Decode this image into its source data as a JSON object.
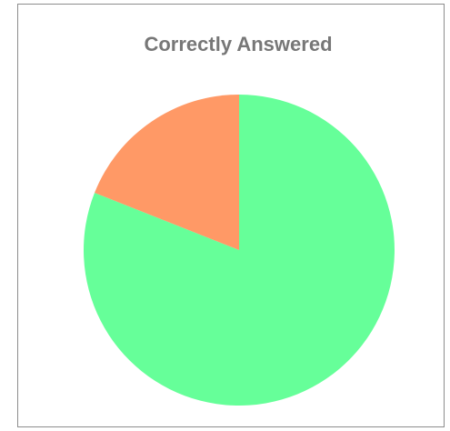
{
  "chart_data": {
    "type": "pie",
    "title": "Correctly Answered",
    "categories": [
      null,
      null
    ],
    "values": [
      81,
      19
    ],
    "colors": [
      "#66ff99",
      "#ff9966"
    ]
  }
}
